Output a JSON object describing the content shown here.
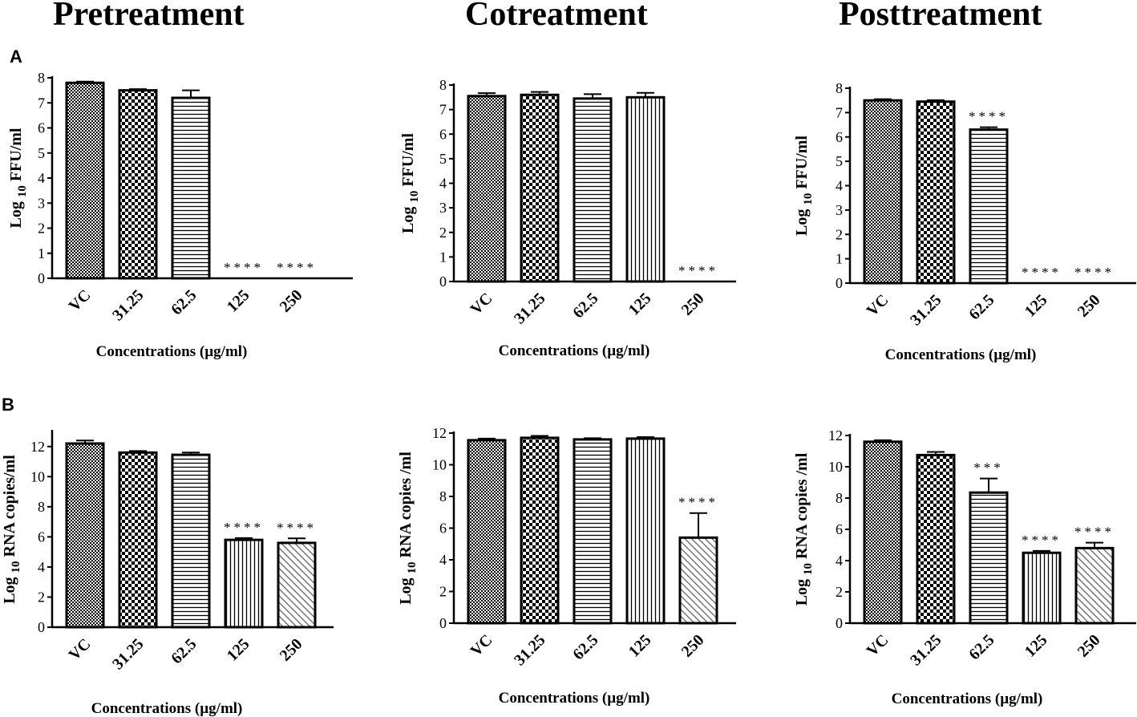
{
  "column_titles": [
    "Pretreatment",
    "Cotreatment",
    "Posttreatment"
  ],
  "row_labels": [
    "A",
    "B"
  ],
  "chart_data": [
    {
      "type": "bar",
      "id": "A-pre",
      "title": "Pretreatment",
      "categories": [
        "VC",
        "31.25",
        "62.5",
        "125",
        "250"
      ],
      "values": [
        7.8,
        7.5,
        7.2,
        0,
        0
      ],
      "errors": [
        0.05,
        0.05,
        0.3,
        0,
        0
      ],
      "significance": [
        "",
        "",
        "",
        "****",
        "****"
      ],
      "patterns": [
        "dense",
        "checker",
        "hlines",
        "none",
        "none"
      ],
      "xlabel": "Concentrations (µg/ml)",
      "ylabel_main": "Log",
      "ylabel_sub": "10",
      "ylabel_tail": "FFU/ml",
      "ylim": [
        0,
        8
      ],
      "yticks": [
        0,
        1,
        2,
        3,
        4,
        5,
        6,
        7,
        8
      ]
    },
    {
      "type": "bar",
      "id": "A-co",
      "title": "Cotreatment",
      "categories": [
        "VC",
        "31.25",
        "62.5",
        "125",
        "250"
      ],
      "values": [
        7.55,
        7.6,
        7.45,
        7.5,
        0
      ],
      "errors": [
        0.12,
        0.12,
        0.18,
        0.18,
        0
      ],
      "significance": [
        "",
        "",
        "",
        "",
        "****"
      ],
      "patterns": [
        "dense",
        "checker",
        "hlines",
        "vlines",
        "none"
      ],
      "xlabel": "Concentrations (µg/ml)",
      "ylabel_main": "Log",
      "ylabel_sub": "10",
      "ylabel_tail": "FFU/ml",
      "ylim": [
        0,
        8
      ],
      "yticks": [
        0,
        1,
        2,
        3,
        4,
        5,
        6,
        7,
        8
      ]
    },
    {
      "type": "bar",
      "id": "A-post",
      "title": "Posttreatment",
      "categories": [
        "VC",
        "31.25",
        "62.5",
        "125",
        "250"
      ],
      "values": [
        7.5,
        7.45,
        6.3,
        0,
        0
      ],
      "errors": [
        0.05,
        0.06,
        0.1,
        0,
        0
      ],
      "significance": [
        "",
        "",
        "****",
        "****",
        "****"
      ],
      "patterns": [
        "dense",
        "checker",
        "hlines",
        "none",
        "none"
      ],
      "xlabel": "Concentrations (µg/ml)",
      "ylabel_main": "Log",
      "ylabel_sub": "10",
      "ylabel_tail": "FFU/ml",
      "ylim": [
        0,
        8
      ],
      "yticks": [
        0,
        1,
        2,
        3,
        4,
        5,
        6,
        7,
        8
      ]
    },
    {
      "type": "bar",
      "id": "B-pre",
      "title": "Pretreatment",
      "categories": [
        "VC",
        "31.25",
        "62.5",
        "125",
        "250"
      ],
      "values": [
        12.2,
        11.6,
        11.45,
        5.8,
        5.6
      ],
      "errors": [
        0.2,
        0.1,
        0.15,
        0.12,
        0.3
      ],
      "significance": [
        "",
        "",
        "",
        "****",
        "****"
      ],
      "patterns": [
        "dense",
        "checker",
        "hlines",
        "vlines",
        "diag"
      ],
      "xlabel": "Concentrations (µg/ml)",
      "ylabel_main": "Log",
      "ylabel_sub": "10",
      "ylabel_tail": "RNA copies/ml",
      "ylim": [
        0,
        13
      ],
      "yticks": [
        0,
        2,
        4,
        6,
        8,
        10,
        12
      ]
    },
    {
      "type": "bar",
      "id": "B-co",
      "title": "Cotreatment",
      "categories": [
        "VC",
        "31.25",
        "62.5",
        "125",
        "250"
      ],
      "values": [
        11.55,
        11.7,
        11.6,
        11.65,
        5.4
      ],
      "errors": [
        0.1,
        0.12,
        0.08,
        0.1,
        1.55
      ],
      "significance": [
        "",
        "",
        "",
        "",
        "****"
      ],
      "patterns": [
        "dense",
        "checker",
        "hlines",
        "vlines",
        "diag"
      ],
      "xlabel": "Concentrations (µg/ml)",
      "ylabel_main": "Log",
      "ylabel_sub": "10",
      "ylabel_tail": "RNA copies /ml",
      "ylim": [
        0,
        12
      ],
      "yticks": [
        0,
        2,
        4,
        6,
        8,
        10,
        12
      ]
    },
    {
      "type": "bar",
      "id": "B-post",
      "title": "Posttreatment",
      "categories": [
        "VC",
        "31.25",
        "62.5",
        "125",
        "250"
      ],
      "values": [
        11.6,
        10.75,
        8.35,
        4.5,
        4.8
      ],
      "errors": [
        0.1,
        0.2,
        0.9,
        0.12,
        0.35
      ],
      "significance": [
        "",
        "",
        "***",
        "****",
        "****"
      ],
      "patterns": [
        "dense",
        "checker",
        "hlines",
        "vlines",
        "diag"
      ],
      "xlabel": "Concentrations (µg/ml)",
      "ylabel_main": "Log",
      "ylabel_sub": "10",
      "ylabel_tail": "RNA copies /ml",
      "ylim": [
        0,
        12
      ],
      "yticks": [
        0,
        2,
        4,
        6,
        8,
        10,
        12
      ]
    }
  ]
}
